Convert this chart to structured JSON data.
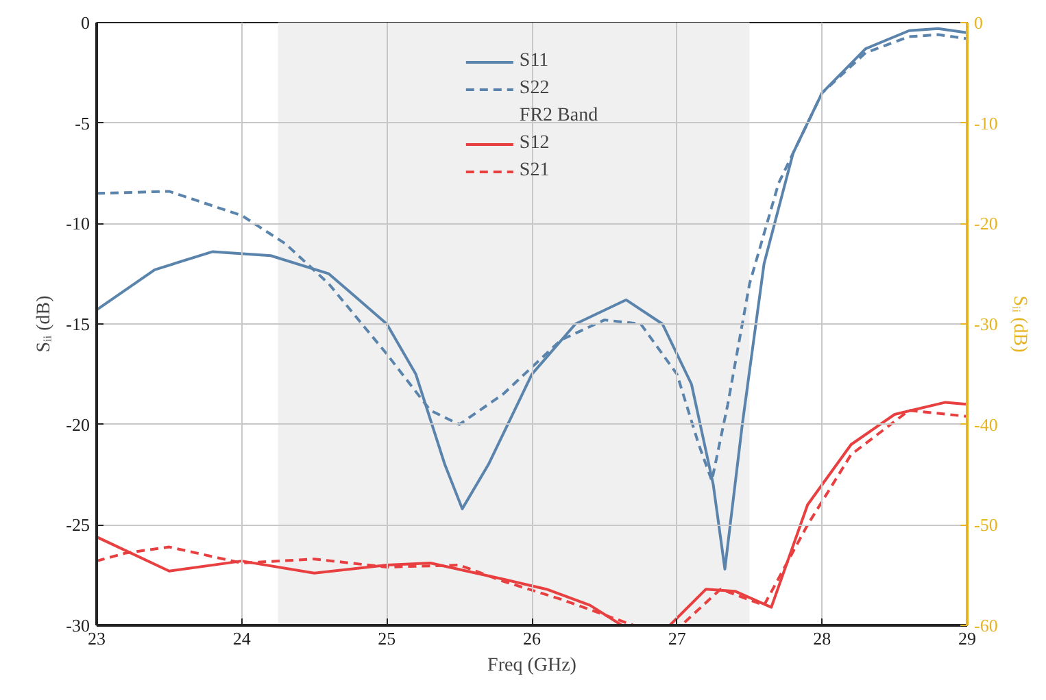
{
  "chart_data": {
    "type": "line",
    "xlabel": "Freq (GHz)",
    "ylabel": "Sᵢᵢ (dB)",
    "y2label": "Sᵢᵢ (dB)",
    "xlim": [
      23,
      29
    ],
    "ylim": [
      -30,
      0
    ],
    "y2lim": [
      -60,
      0
    ],
    "xticks": [
      23,
      24,
      25,
      26,
      27,
      28,
      29
    ],
    "yticks": [
      -30,
      -25,
      -20,
      -15,
      -10,
      -5,
      0
    ],
    "y2ticks": [
      -60,
      -50,
      -40,
      -30,
      -20,
      -10,
      0
    ],
    "grid": true,
    "legend": "top",
    "bands": [
      {
        "axis": "x",
        "from": 24.25,
        "to": 27.5,
        "label": "FR2 Band",
        "color": "#f0f0f0"
      }
    ],
    "series": [
      {
        "name": "S11",
        "color": "#5b84ad",
        "line_style": "solid",
        "x": [
          23,
          23.4,
          23.8,
          24.2,
          24.6,
          25.0,
          25.2,
          25.4,
          25.52,
          25.7,
          26.0,
          26.3,
          26.65,
          26.9,
          27.1,
          27.25,
          27.33,
          27.45,
          27.6,
          27.8,
          28.0,
          28.3,
          28.6,
          28.8,
          29
        ],
        "values": [
          -14.3,
          -12.3,
          -11.4,
          -11.6,
          -12.5,
          -15,
          -17.5,
          -22,
          -24.2,
          -22,
          -17.5,
          -15,
          -13.8,
          -15,
          -18,
          -23,
          -27.2,
          -20,
          -12,
          -6.5,
          -3.5,
          -1.3,
          -0.4,
          -0.3,
          -0.5
        ]
      },
      {
        "name": "S22",
        "color": "#5b84ad",
        "line_style": "dashed",
        "x": [
          23,
          23.5,
          24,
          24.3,
          24.6,
          25,
          25.3,
          25.5,
          25.8,
          26.2,
          26.5,
          26.75,
          27.0,
          27.15,
          27.24,
          27.35,
          27.5,
          27.7,
          28.0,
          28.3,
          28.6,
          28.8,
          29
        ],
        "values": [
          -8.5,
          -8.4,
          -9.6,
          -11,
          -13,
          -16.5,
          -19.3,
          -20,
          -18.5,
          -15.8,
          -14.8,
          -15,
          -17.5,
          -21,
          -22.8,
          -19,
          -13,
          -8,
          -3.5,
          -1.5,
          -0.7,
          -0.6,
          -0.8
        ]
      },
      {
        "name": "S12",
        "color": "#e84040",
        "line_style": "solid",
        "axis": "y2",
        "x": [
          23,
          23.5,
          24,
          24.5,
          25,
          25.3,
          25.8,
          26.1,
          26.4,
          26.62,
          26.95,
          27.2,
          27.4,
          27.65,
          27.9,
          28.2,
          28.5,
          28.85,
          29
        ],
        "values": [
          -51.2,
          -54.6,
          -53.6,
          -54.8,
          -54,
          -53.8,
          -55.4,
          -56.4,
          -58,
          -60,
          -60,
          -56.4,
          -56.6,
          -58.2,
          -48,
          -42,
          -39,
          -37.8,
          -38
        ]
      },
      {
        "name": "S21",
        "color": "#e84040",
        "line_style": "dashed",
        "axis": "y2",
        "x": [
          23,
          23.2,
          23.5,
          24,
          24.5,
          25,
          25.5,
          25.8,
          26.2,
          26.7,
          27.03,
          27.3,
          27.6,
          27.9,
          28.2,
          28.6,
          29
        ],
        "values": [
          -53.6,
          -52.8,
          -52.2,
          -53.8,
          -53.4,
          -54.2,
          -54,
          -55.6,
          -57.4,
          -60,
          -60,
          -56.4,
          -58,
          -50,
          -43,
          -38.6,
          -39.2
        ]
      }
    ]
  }
}
